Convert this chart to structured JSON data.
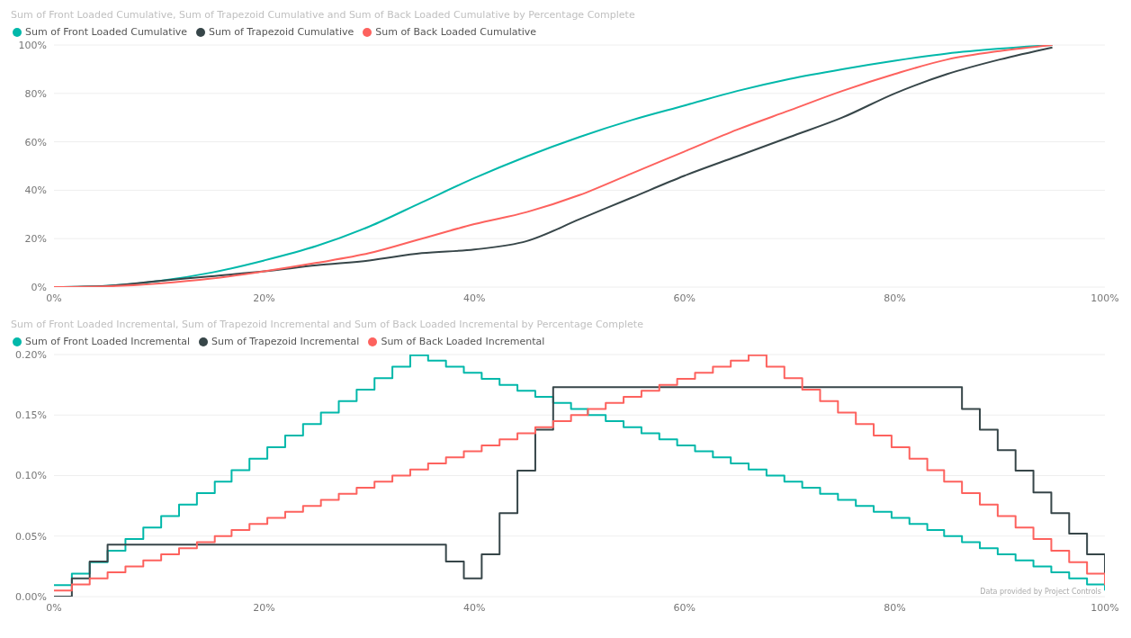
{
  "chart_data": [
    {
      "type": "line",
      "title": "Sum of Front Loaded Cumulative, Sum of Trapezoid Cumulative and Sum of Back Loaded Cumulative by Percentage Complete",
      "x": [
        0,
        5,
        10,
        15,
        20,
        25,
        30,
        35,
        40,
        45,
        50,
        55,
        60,
        65,
        70,
        75,
        80,
        85,
        90,
        95
      ],
      "series": [
        {
          "name": "Sum of Front Loaded Cumulative",
          "color": "#01b8aa",
          "values": [
            0,
            0.5,
            2.5,
            6,
            11,
            17,
            25,
            35,
            45,
            54,
            62,
            69,
            75,
            81,
            86,
            90,
            93.5,
            96.5,
            98.5,
            100
          ]
        },
        {
          "name": "Sum of Trapezoid Cumulative",
          "color": "#374649",
          "values": [
            0,
            0.5,
            2.5,
            4.5,
            6.5,
            9,
            11,
            14,
            15.5,
            19,
            28,
            37,
            46,
            54,
            62,
            70,
            80,
            88,
            94,
            99
          ]
        },
        {
          "name": "Sum of Back Loaded Cumulative",
          "color": "#fd625e",
          "values": [
            0,
            0.3,
            1.5,
            3.5,
            6.5,
            10,
            14,
            20,
            26,
            31,
            38,
            47,
            56,
            65,
            73,
            81,
            88,
            94,
            97.5,
            100
          ]
        }
      ],
      "xlim": [
        0,
        100
      ],
      "xticks": [
        {
          "value": 0,
          "label": "0%"
        },
        {
          "value": 20,
          "label": "20%"
        },
        {
          "value": 40,
          "label": "40%"
        },
        {
          "value": 60,
          "label": "60%"
        },
        {
          "value": 80,
          "label": "80%"
        },
        {
          "value": 100,
          "label": "100%"
        }
      ],
      "ylim": [
        0,
        100
      ],
      "yticks": [
        {
          "value": 0,
          "label": "0%"
        },
        {
          "value": 20,
          "label": "20%"
        },
        {
          "value": 40,
          "label": "40%"
        },
        {
          "value": 60,
          "label": "60%"
        },
        {
          "value": 80,
          "label": "80%"
        },
        {
          "value": 100,
          "label": "100%"
        }
      ],
      "grid": "y",
      "legend": "top left",
      "marker": "none"
    },
    {
      "type": "step",
      "title": "Sum of Front Loaded Incremental, Sum of Trapezoid Incremental and Sum of Back Loaded Incremental by Percentage Complete",
      "x": [
        0,
        1.7,
        3.4,
        5.1,
        6.8,
        8.5,
        10.2,
        11.9,
        13.6,
        15.3,
        16.9,
        18.6,
        20.3,
        22,
        23.7,
        25.4,
        27.1,
        28.8,
        30.5,
        32.2,
        33.9,
        35.6,
        37.3,
        39,
        40.7,
        42.4,
        44.1,
        45.8,
        47.5,
        49.2,
        50.8,
        52.5,
        54.2,
        55.9,
        57.6,
        59.3,
        61,
        62.7,
        64.4,
        66.1,
        67.8,
        69.5,
        71.2,
        72.9,
        74.6,
        76.3,
        78,
        79.7,
        81.4,
        83.1,
        84.7,
        86.4,
        88.1,
        89.8,
        91.5,
        93.2,
        94.9,
        96.6,
        98.3,
        100
      ],
      "series": [
        {
          "name": "Sum of Front Loaded Incremental",
          "color": "#01b8aa",
          "values": [
            0.0095,
            0.019,
            0.0285,
            0.038,
            0.0475,
            0.057,
            0.0665,
            0.076,
            0.0855,
            0.095,
            0.1045,
            0.114,
            0.1235,
            0.133,
            0.1425,
            0.152,
            0.1615,
            0.171,
            0.1805,
            0.19,
            0.1995,
            0.195,
            0.19,
            0.185,
            0.18,
            0.175,
            0.17,
            0.165,
            0.16,
            0.155,
            0.15,
            0.145,
            0.14,
            0.135,
            0.13,
            0.125,
            0.12,
            0.115,
            0.11,
            0.105,
            0.1,
            0.095,
            0.09,
            0.085,
            0.08,
            0.075,
            0.07,
            0.065,
            0.06,
            0.055,
            0.05,
            0.045,
            0.04,
            0.035,
            0.03,
            0.025,
            0.02,
            0.015,
            0.01,
            0.005
          ]
        },
        {
          "name": "Sum of Trapezoid Incremental",
          "color": "#374649",
          "values": [
            0,
            0.015,
            0.029,
            0.043,
            0.043,
            0.043,
            0.043,
            0.043,
            0.043,
            0.043,
            0.043,
            0.043,
            0.043,
            0.043,
            0.043,
            0.043,
            0.043,
            0.043,
            0.043,
            0.043,
            0.043,
            0.043,
            0.029,
            0.015,
            0.035,
            0.069,
            0.104,
            0.138,
            0.173,
            0.173,
            0.173,
            0.173,
            0.173,
            0.173,
            0.173,
            0.173,
            0.173,
            0.173,
            0.173,
            0.173,
            0.173,
            0.173,
            0.173,
            0.173,
            0.173,
            0.173,
            0.173,
            0.173,
            0.173,
            0.173,
            0.173,
            0.155,
            0.138,
            0.121,
            0.104,
            0.086,
            0.069,
            0.052,
            0.035,
            0.017
          ]
        },
        {
          "name": "Sum of Back Loaded Incremental",
          "color": "#fd625e",
          "values": [
            0.005,
            0.01,
            0.015,
            0.02,
            0.025,
            0.03,
            0.035,
            0.04,
            0.045,
            0.05,
            0.055,
            0.06,
            0.065,
            0.07,
            0.075,
            0.08,
            0.085,
            0.09,
            0.095,
            0.1,
            0.105,
            0.11,
            0.115,
            0.12,
            0.125,
            0.13,
            0.135,
            0.14,
            0.145,
            0.15,
            0.155,
            0.16,
            0.165,
            0.17,
            0.175,
            0.18,
            0.185,
            0.19,
            0.195,
            0.1995,
            0.19,
            0.1805,
            0.171,
            0.1615,
            0.152,
            0.1425,
            0.133,
            0.1235,
            0.114,
            0.1045,
            0.095,
            0.0855,
            0.076,
            0.0665,
            0.057,
            0.0475,
            0.038,
            0.0285,
            0.019,
            0.0095
          ]
        }
      ],
      "xlim": [
        0,
        100
      ],
      "xticks": [
        {
          "value": 0,
          "label": "0%"
        },
        {
          "value": 20,
          "label": "20%"
        },
        {
          "value": 40,
          "label": "40%"
        },
        {
          "value": 60,
          "label": "60%"
        },
        {
          "value": 80,
          "label": "80%"
        },
        {
          "value": 100,
          "label": "100%"
        }
      ],
      "ylim": [
        0,
        0.2
      ],
      "yticks": [
        {
          "value": 0,
          "label": "0.00%"
        },
        {
          "value": 0.05,
          "label": "0.05%"
        },
        {
          "value": 0.1,
          "label": "0.10%"
        },
        {
          "value": 0.15,
          "label": "0.15%"
        },
        {
          "value": 0.2,
          "label": "0.20%"
        }
      ],
      "grid": "y",
      "legend": "top left",
      "marker": "none",
      "annotations": [
        "Data provided by Project Controls"
      ]
    }
  ]
}
